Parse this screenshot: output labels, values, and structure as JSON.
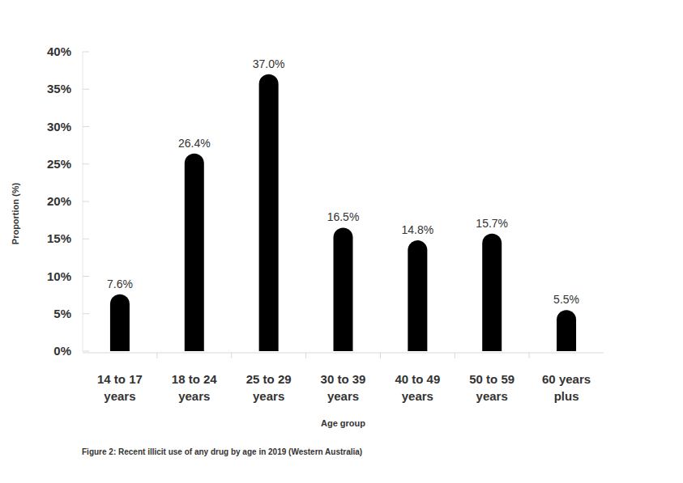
{
  "chart_data": {
    "type": "bar",
    "title": "Figure 2: Recent illicit use of any drug by age in 2019 (Western Australia)",
    "x_label": "Age group",
    "y_label": "Proportion (%)",
    "categories": [
      "14 to 17 years",
      "18 to 24 years",
      "25 to 29 years",
      "30 to 39 years",
      "40 to 49 years",
      "50 to 59 years",
      "60 years plus"
    ],
    "values": [
      7.6,
      26.4,
      37.0,
      16.5,
      14.8,
      15.7,
      5.5
    ],
    "value_labels": [
      "7.6%",
      "26.4%",
      "37.0%",
      "16.5%",
      "14.8%",
      "15.7%",
      "5.5%"
    ],
    "color": "#000000",
    "ylim": [
      0,
      40
    ],
    "yticks": [
      {
        "value": 0,
        "label": "0%"
      },
      {
        "value": 5,
        "label": "5%"
      },
      {
        "value": 10,
        "label": "10%"
      },
      {
        "value": 15,
        "label": "15%"
      },
      {
        "value": 20,
        "label": "20%"
      },
      {
        "value": 25,
        "label": "25%"
      },
      {
        "value": 30,
        "label": "30%"
      },
      {
        "value": 35,
        "label": "35%"
      },
      {
        "value": 40,
        "label": "40%"
      }
    ],
    "grid": false,
    "data_labels": true
  }
}
